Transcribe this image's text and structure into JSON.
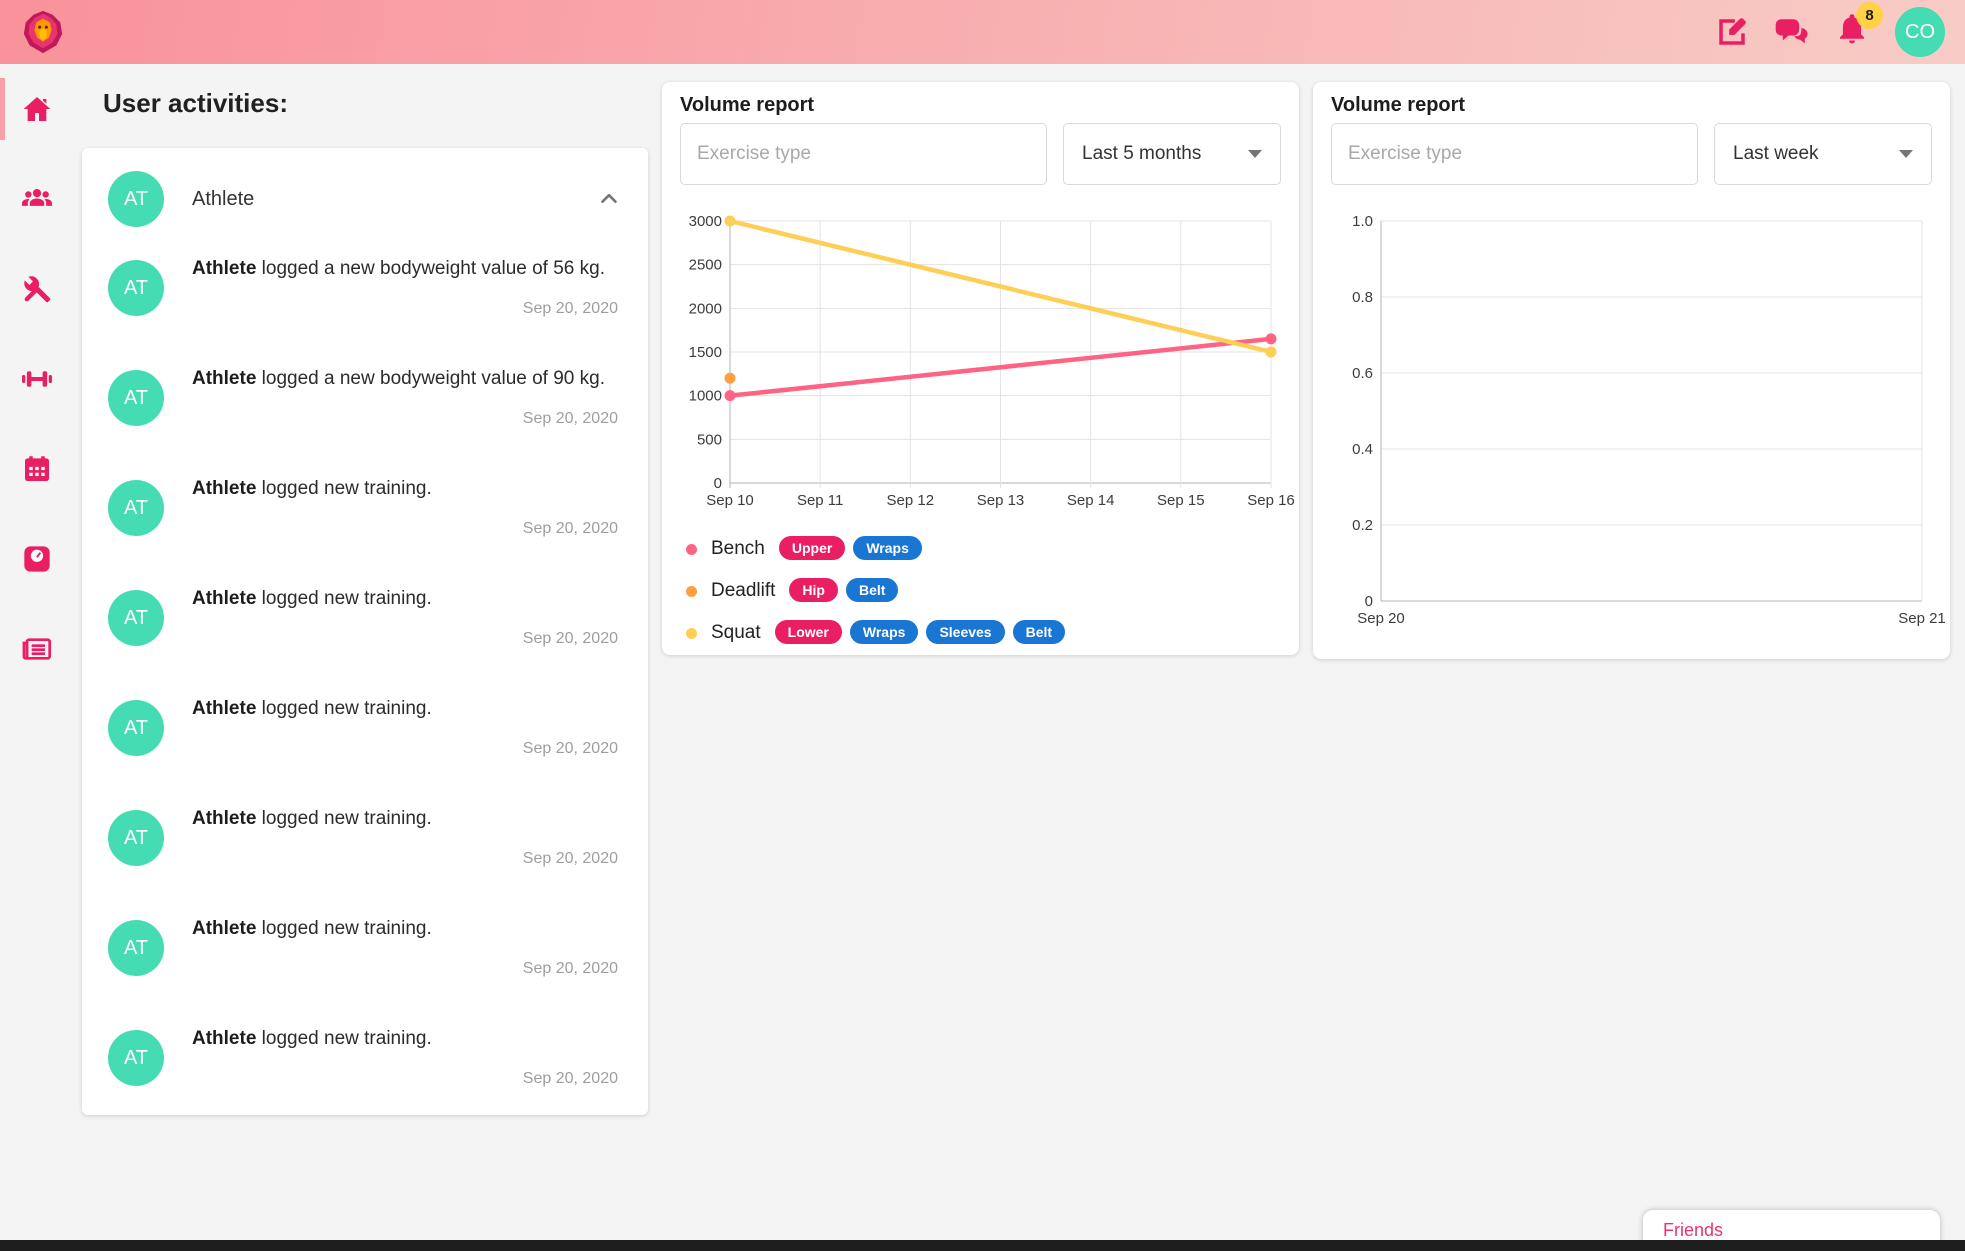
{
  "header": {
    "notification_count": "8",
    "avatar_initials": "CO"
  },
  "sidebar": {
    "items": [
      {
        "icon": "home-icon",
        "active": true
      },
      {
        "icon": "group-icon",
        "active": false
      },
      {
        "icon": "tools-icon",
        "active": false
      },
      {
        "icon": "dumbbell-icon",
        "active": false
      },
      {
        "icon": "calendar-icon",
        "active": false
      },
      {
        "icon": "weight-scale-icon",
        "active": false
      },
      {
        "icon": "newspaper-icon",
        "active": false
      }
    ]
  },
  "activities": {
    "title": "User activities:",
    "group": {
      "initials": "AT",
      "name": "Athlete"
    },
    "entries": [
      {
        "initials": "AT",
        "name": "Athlete",
        "text": " logged a new bodyweight value of 56 kg.",
        "date": "Sep 20, 2020"
      },
      {
        "initials": "AT",
        "name": "Athlete",
        "text": " logged a new bodyweight value of 90 kg.",
        "date": "Sep 20, 2020"
      },
      {
        "initials": "AT",
        "name": "Athlete",
        "text": " logged new training.",
        "date": "Sep 20, 2020"
      },
      {
        "initials": "AT",
        "name": "Athlete",
        "text": " logged new training.",
        "date": "Sep 20, 2020"
      },
      {
        "initials": "AT",
        "name": "Athlete",
        "text": " logged new training.",
        "date": "Sep 20, 2020"
      },
      {
        "initials": "AT",
        "name": "Athlete",
        "text": " logged new training.",
        "date": "Sep 20, 2020"
      },
      {
        "initials": "AT",
        "name": "Athlete",
        "text": " logged new training.",
        "date": "Sep 20, 2020"
      },
      {
        "initials": "AT",
        "name": "Athlete",
        "text": " logged new training.",
        "date": "Sep 20, 2020"
      }
    ]
  },
  "cards": [
    {
      "title": "Volume report",
      "exercise_placeholder": "Exercise type",
      "period": "Last 5 months"
    },
    {
      "title": "Volume report",
      "exercise_placeholder": "Exercise type",
      "period": "Last week"
    }
  ],
  "friends_panel": {
    "title": "Friends"
  },
  "colors": {
    "accent_pink": "#e91e63",
    "badge_blue": "#1976d2",
    "avatar_teal": "#45dbb3",
    "notif_yellow": "#fdd244",
    "header_gradient_start": "#f9929a",
    "header_gradient_end": "#f8ccc6"
  },
  "chart_data": [
    {
      "type": "line",
      "title": "Volume report",
      "x_labels": [
        "Sep 10",
        "Sep 11",
        "Sep 12",
        "Sep 13",
        "Sep 14",
        "Sep 15",
        "Sep 16"
      ],
      "y_ticks": [
        0,
        500,
        1000,
        1500,
        2000,
        2500,
        3000
      ],
      "y_tick_labels": [
        "0",
        "500",
        "1000",
        "1500",
        "2000",
        "2500",
        "3000"
      ],
      "ylim": [
        0,
        3000
      ],
      "vertical_grid": true,
      "x_label_mode": "all",
      "series": [
        {
          "name": "Bench",
          "color": "#ff6384",
          "points": [
            {
              "x": 0,
              "y": 1000
            },
            {
              "x": 6,
              "y": 1650
            }
          ]
        },
        {
          "name": "Deadlift",
          "color": "#ff9f40",
          "points": [
            {
              "x": 0,
              "y": 1200
            }
          ]
        },
        {
          "name": "Squat",
          "color": "#ffce56",
          "points": [
            {
              "x": 0,
              "y": 3000
            },
            {
              "x": 6,
              "y": 1500
            }
          ]
        }
      ],
      "legend_position": "bottom",
      "legend": [
        {
          "name": "Bench",
          "color": "#ff6384",
          "badges": [
            {
              "label": "Upper",
              "color": "#e91e63"
            },
            {
              "label": "Wraps",
              "color": "#1976d2"
            }
          ]
        },
        {
          "name": "Deadlift",
          "color": "#ff9f40",
          "badges": [
            {
              "label": "Hip",
              "color": "#e91e63"
            },
            {
              "label": "Belt",
              "color": "#1976d2"
            }
          ]
        },
        {
          "name": "Squat",
          "color": "#ffce56",
          "badges": [
            {
              "label": "Lower",
              "color": "#e91e63"
            },
            {
              "label": "Wraps",
              "color": "#1976d2"
            },
            {
              "label": "Sleeves",
              "color": "#1976d2"
            },
            {
              "label": "Belt",
              "color": "#1976d2"
            }
          ]
        }
      ]
    },
    {
      "type": "line",
      "title": "Volume report",
      "x_labels": [
        "Sep 20",
        "Sep 21"
      ],
      "y_ticks": [
        0,
        0.2,
        0.4,
        0.6,
        0.8,
        1.0
      ],
      "y_tick_labels": [
        "0",
        "0.2",
        "0.4",
        "0.6",
        "0.8",
        "1.0"
      ],
      "ylim": [
        0,
        1
      ],
      "vertical_grid": false,
      "x_label_mode": "ends",
      "series": [],
      "legend": []
    }
  ]
}
